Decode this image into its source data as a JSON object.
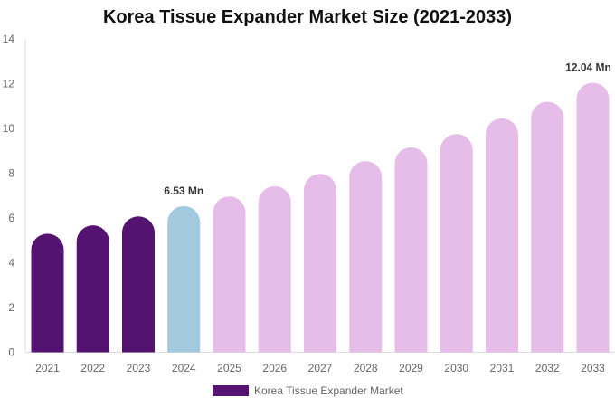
{
  "chart_data": {
    "type": "bar",
    "title": "Korea Tissue Expander Market Size (2021-2033)",
    "xlabel": "",
    "ylabel": "",
    "categories": [
      "2021",
      "2022",
      "2023",
      "2024",
      "2025",
      "2026",
      "2027",
      "2028",
      "2029",
      "2030",
      "2031",
      "2032",
      "2033"
    ],
    "series": [
      {
        "name": "Korea Tissue Expander Market",
        "values": [
          5.3,
          5.67,
          6.07,
          6.53,
          6.96,
          7.42,
          7.97,
          8.54,
          9.15,
          9.75,
          10.45,
          11.19,
          12.04
        ]
      }
    ],
    "ylim": [
      0,
      14
    ],
    "yticks": [
      "0",
      "2",
      "4",
      "6",
      "8",
      "10",
      "12",
      "14"
    ],
    "data_labels": {
      "3": "6.53 Mn",
      "12": "12.04 Mn"
    },
    "bar_colors": {
      "historical": "#541370",
      "base_year": "#a3c9de",
      "forecast": "#e6bde8"
    },
    "grid": false,
    "legend_position": "bottom"
  }
}
